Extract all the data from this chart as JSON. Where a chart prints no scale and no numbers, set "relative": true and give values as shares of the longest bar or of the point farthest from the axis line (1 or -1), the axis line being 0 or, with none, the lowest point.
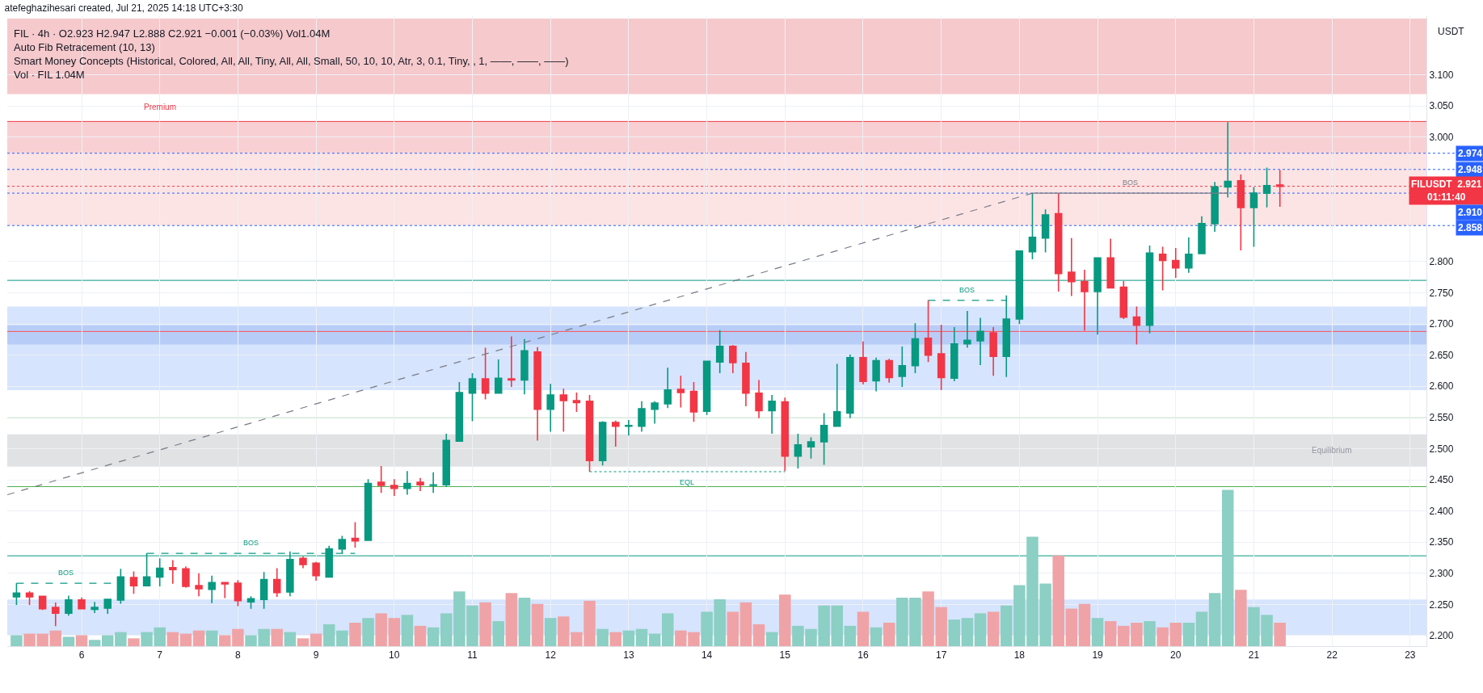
{
  "chart_data": [
    {
      "type": "candlestick",
      "title": "atefeghazihesari created, Jul 21, 2025 14:18 UTC+3:30",
      "subtitle": "FIL · 4h · O2.923 H2.947 L2.888 C2.921 −0.001 (−0.03%) Vol1.04M",
      "ylabel": "USDT",
      "x": [
        "2025-07-05T07:30",
        "2025-07-05T11:30",
        "2025-07-05T15:30",
        "2025-07-05T19:30",
        "2025-07-05T23:30",
        "2025-07-06T03:30",
        "2025-07-06T07:30",
        "2025-07-06T11:30",
        "2025-07-06T15:30",
        "2025-07-06T19:30",
        "2025-07-06T23:30",
        "2025-07-07T03:30",
        "2025-07-07T07:30",
        "2025-07-07T11:30",
        "2025-07-07T15:30",
        "2025-07-07T19:30",
        "2025-07-07T23:30",
        "2025-07-08T03:30",
        "2025-07-08T07:30",
        "2025-07-08T11:30",
        "2025-07-08T15:30",
        "2025-07-08T19:30",
        "2025-07-08T23:30",
        "2025-07-09T03:30",
        "2025-07-09T07:30",
        "2025-07-09T11:30",
        "2025-07-09T15:30",
        "2025-07-09T19:30",
        "2025-07-09T23:30",
        "2025-07-10T03:30",
        "2025-07-10T07:30",
        "2025-07-10T11:30",
        "2025-07-10T15:30",
        "2025-07-10T19:30",
        "2025-07-10T23:30",
        "2025-07-11T03:30",
        "2025-07-11T07:30",
        "2025-07-11T11:30",
        "2025-07-11T15:30",
        "2025-07-11T19:30",
        "2025-07-11T23:30",
        "2025-07-12T03:30",
        "2025-07-12T07:30",
        "2025-07-12T11:30",
        "2025-07-12T15:30",
        "2025-07-12T19:30",
        "2025-07-12T23:30",
        "2025-07-13T03:30",
        "2025-07-13T07:30",
        "2025-07-13T11:30",
        "2025-07-13T15:30",
        "2025-07-13T19:30",
        "2025-07-13T23:30",
        "2025-07-14T03:30",
        "2025-07-14T07:30",
        "2025-07-14T11:30",
        "2025-07-14T15:30",
        "2025-07-14T19:30",
        "2025-07-14T23:30",
        "2025-07-15T03:30",
        "2025-07-15T07:30",
        "2025-07-15T11:30",
        "2025-07-15T15:30",
        "2025-07-15T19:30",
        "2025-07-15T23:30",
        "2025-07-16T03:30",
        "2025-07-16T07:30",
        "2025-07-16T11:30",
        "2025-07-16T15:30",
        "2025-07-16T19:30",
        "2025-07-16T23:30",
        "2025-07-17T03:30",
        "2025-07-17T07:30",
        "2025-07-17T11:30",
        "2025-07-17T15:30",
        "2025-07-17T19:30",
        "2025-07-17T23:30",
        "2025-07-18T03:30",
        "2025-07-18T07:30",
        "2025-07-18T11:30",
        "2025-07-18T15:30",
        "2025-07-18T19:30",
        "2025-07-18T23:30",
        "2025-07-19T03:30",
        "2025-07-19T07:30",
        "2025-07-19T11:30",
        "2025-07-19T15:30",
        "2025-07-19T19:30",
        "2025-07-19T23:30",
        "2025-07-20T03:30",
        "2025-07-20T07:30",
        "2025-07-20T11:30",
        "2025-07-20T15:30",
        "2025-07-20T19:30",
        "2025-07-20T23:30",
        "2025-07-21T03:30",
        "2025-07-21T07:30",
        "2025-07-21T11:30"
      ],
      "ohlc": [
        [
          2.262,
          2.284,
          2.249,
          2.268
        ],
        [
          2.268,
          2.271,
          2.249,
          2.262
        ],
        [
          2.263,
          2.263,
          2.241,
          2.243
        ],
        [
          2.245,
          2.253,
          2.215,
          2.236
        ],
        [
          2.236,
          2.264,
          2.232,
          2.257
        ],
        [
          2.257,
          2.261,
          2.242,
          2.243
        ],
        [
          2.242,
          2.254,
          2.236,
          2.245
        ],
        [
          2.244,
          2.259,
          2.235,
          2.258
        ],
        [
          2.257,
          2.307,
          2.251,
          2.294
        ],
        [
          2.293,
          2.303,
          2.267,
          2.28
        ],
        [
          2.28,
          2.332,
          2.28,
          2.294
        ],
        [
          2.294,
          2.324,
          2.279,
          2.308
        ],
        [
          2.309,
          2.321,
          2.283,
          2.306
        ],
        [
          2.307,
          2.311,
          2.277,
          2.279
        ],
        [
          2.28,
          2.3,
          2.263,
          2.275
        ],
        [
          2.274,
          2.296,
          2.252,
          2.285
        ],
        [
          2.285,
          2.285,
          2.26,
          2.283
        ],
        [
          2.284,
          2.289,
          2.247,
          2.256
        ],
        [
          2.254,
          2.263,
          2.243,
          2.259
        ],
        [
          2.258,
          2.302,
          2.243,
          2.29
        ],
        [
          2.29,
          2.308,
          2.262,
          2.269
        ],
        [
          2.27,
          2.335,
          2.263,
          2.322
        ],
        [
          2.324,
          2.327,
          2.308,
          2.314
        ],
        [
          2.316,
          2.318,
          2.288,
          2.296
        ],
        [
          2.294,
          2.344,
          2.293,
          2.339
        ],
        [
          2.339,
          2.36,
          2.332,
          2.354
        ],
        [
          2.356,
          2.382,
          2.341,
          2.352
        ],
        [
          2.353,
          2.451,
          2.353,
          2.444
        ],
        [
          2.446,
          2.472,
          2.429,
          2.441
        ],
        [
          2.441,
          2.451,
          2.424,
          2.436
        ],
        [
          2.436,
          2.464,
          2.426,
          2.444
        ],
        [
          2.446,
          2.453,
          2.432,
          2.442
        ],
        [
          2.441,
          2.462,
          2.429,
          2.442
        ],
        [
          2.442,
          2.524,
          2.439,
          2.513
        ],
        [
          2.512,
          2.607,
          2.512,
          2.59
        ],
        [
          2.589,
          2.621,
          2.544,
          2.612
        ],
        [
          2.612,
          2.662,
          2.579,
          2.589
        ],
        [
          2.589,
          2.643,
          2.589,
          2.613
        ],
        [
          2.612,
          2.68,
          2.599,
          2.61
        ],
        [
          2.61,
          2.676,
          2.587,
          2.657
        ],
        [
          2.655,
          2.663,
          2.513,
          2.563
        ],
        [
          2.563,
          2.604,
          2.527,
          2.586
        ],
        [
          2.586,
          2.596,
          2.527,
          2.577
        ],
        [
          2.577,
          2.59,
          2.559,
          2.574
        ],
        [
          2.576,
          2.586,
          2.463,
          2.481
        ],
        [
          2.481,
          2.544,
          2.473,
          2.542
        ],
        [
          2.542,
          2.545,
          2.503,
          2.536
        ],
        [
          2.536,
          2.546,
          2.521,
          2.537
        ],
        [
          2.536,
          2.576,
          2.527,
          2.564
        ],
        [
          2.563,
          2.576,
          2.54,
          2.573
        ],
        [
          2.572,
          2.63,
          2.565,
          2.594
        ],
        [
          2.595,
          2.617,
          2.566,
          2.59
        ],
        [
          2.592,
          2.607,
          2.543,
          2.559
        ],
        [
          2.56,
          2.64,
          2.554,
          2.64
        ],
        [
          2.639,
          2.69,
          2.621,
          2.664
        ],
        [
          2.664,
          2.666,
          2.621,
          2.638
        ],
        [
          2.637,
          2.655,
          2.568,
          2.589
        ],
        [
          2.589,
          2.61,
          2.549,
          2.561
        ],
        [
          2.561,
          2.586,
          2.524,
          2.576
        ],
        [
          2.575,
          2.582,
          2.464,
          2.488
        ],
        [
          2.488,
          2.524,
          2.468,
          2.506
        ],
        [
          2.503,
          2.518,
          2.484,
          2.511
        ],
        [
          2.511,
          2.557,
          2.474,
          2.537
        ],
        [
          2.536,
          2.636,
          2.536,
          2.559
        ],
        [
          2.557,
          2.651,
          2.549,
          2.646
        ],
        [
          2.646,
          2.672,
          2.603,
          2.608
        ],
        [
          2.609,
          2.646,
          2.592,
          2.641
        ],
        [
          2.641,
          2.644,
          2.606,
          2.614
        ],
        [
          2.616,
          2.664,
          2.599,
          2.633
        ],
        [
          2.633,
          2.701,
          2.621,
          2.676
        ],
        [
          2.677,
          2.738,
          2.639,
          2.65
        ],
        [
          2.652,
          2.699,
          2.594,
          2.614
        ],
        [
          2.613,
          2.695,
          2.608,
          2.668
        ],
        [
          2.668,
          2.721,
          2.662,
          2.674
        ],
        [
          2.673,
          2.71,
          2.634,
          2.688
        ],
        [
          2.686,
          2.695,
          2.617,
          2.648
        ],
        [
          2.648,
          2.746,
          2.615,
          2.708
        ],
        [
          2.708,
          2.817,
          2.7,
          2.817
        ],
        [
          2.816,
          2.91,
          2.804,
          2.839
        ],
        [
          2.838,
          2.884,
          2.815,
          2.875
        ],
        [
          2.877,
          2.91,
          2.752,
          2.781
        ],
        [
          2.783,
          2.838,
          2.745,
          2.768
        ],
        [
          2.768,
          2.787,
          2.689,
          2.752
        ],
        [
          2.752,
          2.807,
          2.683,
          2.806
        ],
        [
          2.806,
          2.837,
          2.758,
          2.758
        ],
        [
          2.759,
          2.769,
          2.708,
          2.711
        ],
        [
          2.711,
          2.728,
          2.667,
          2.698
        ],
        [
          2.698,
          2.826,
          2.685,
          2.814
        ],
        [
          2.812,
          2.824,
          2.754,
          2.802
        ],
        [
          2.802,
          2.822,
          2.774,
          2.79
        ],
        [
          2.79,
          2.839,
          2.782,
          2.812
        ],
        [
          2.813,
          2.873,
          2.813,
          2.861
        ],
        [
          2.861,
          2.928,
          2.848,
          2.92
        ],
        [
          2.92,
          3.024,
          2.903,
          2.929
        ],
        [
          2.93,
          2.94,
          2.818,
          2.887
        ],
        [
          2.887,
          2.92,
          2.824,
          2.91
        ],
        [
          2.91,
          2.951,
          2.887,
          2.922
        ],
        [
          2.923,
          2.947,
          2.888,
          2.921
        ]
      ],
      "colors": [
        "#089981",
        "#f23645",
        "#f23645",
        "#f23645",
        "#089981",
        "#f23645",
        "#089981",
        "#089981",
        "#089981",
        "#f23645",
        "#089981",
        "#089981",
        "#f23645",
        "#f23645",
        "#f23645",
        "#089981",
        "#f23645",
        "#f23645",
        "#089981",
        "#089981",
        "#f23645",
        "#089981",
        "#f23645",
        "#f23645",
        "#089981",
        "#089981",
        "#f23645",
        "#089981",
        "#f23645",
        "#f23645",
        "#089981",
        "#f23645",
        "#089981",
        "#089981",
        "#089981",
        "#089981",
        "#f23645",
        "#089981",
        "#f23645",
        "#089981",
        "#f23645",
        "#089981",
        "#f23645",
        "#f23645",
        "#f23645",
        "#089981",
        "#f23645",
        "#089981",
        "#089981",
        "#089981",
        "#089981",
        "#f23645",
        "#f23645",
        "#089981",
        "#089981",
        "#f23645",
        "#f23645",
        "#f23645",
        "#089981",
        "#f23645",
        "#089981",
        "#089981",
        "#089981",
        "#089981",
        "#089981",
        "#f23645",
        "#089981",
        "#f23645",
        "#089981",
        "#089981",
        "#f23645",
        "#f23645",
        "#089981",
        "#089981",
        "#089981",
        "#f23645",
        "#089981",
        "#089981",
        "#089981",
        "#089981",
        "#f23645",
        "#f23645",
        "#f23645",
        "#089981",
        "#f23645",
        "#f23645",
        "#f23645",
        "#089981",
        "#f23645",
        "#f23645",
        "#089981",
        "#089981",
        "#089981",
        "#089981",
        "#f23645",
        "#089981",
        "#089981",
        "#f23645"
      ],
      "series": [
        {
          "type": "line",
          "x": [
            "2025-07-05T04:40",
            "2025-07-18T07:30"
          ],
          "values": [
            2.426,
            2.91
          ],
          "color": "#787b86",
          "line_style": "dashed"
        },
        {
          "type": "line",
          "name": "BOS",
          "x": [
            "2025-07-05T07:30",
            "2025-07-06T14:00"
          ],
          "values": [
            2.284,
            2.284
          ],
          "color": "#089981",
          "line_style": "dashed"
        },
        {
          "type": "line",
          "name": "BOS",
          "x": [
            "2025-07-06T23:30",
            "2025-07-09T15:30"
          ],
          "values": [
            2.332,
            2.332
          ],
          "color": "#089981",
          "line_style": "dashed"
        },
        {
          "type": "line",
          "name": "BOS",
          "x": [
            "2025-07-16T23:30",
            "2025-07-17T23:30"
          ],
          "values": [
            2.738,
            2.738
          ],
          "color": "#089981",
          "line_style": "dashed"
        },
        {
          "type": "line",
          "name": "BOS",
          "x": [
            "2025-07-18T07:30",
            "2025-07-20T19:30"
          ],
          "values": [
            2.91,
            2.91
          ],
          "color": "#787b86",
          "line_style": "solid"
        },
        {
          "type": "line",
          "name": "EQL",
          "x": [
            "2025-07-12T15:30",
            "2025-07-15T03:30"
          ],
          "values": [
            2.463,
            2.463
          ],
          "color": "#089981",
          "line_style": "dotted"
        }
      ],
      "annotations": [
        "Auto Fib Retracement (10, 13)",
        "Smart Money Concepts (Historical, Colored, All, All, Tiny, All, All, Small, 50, 10, 10, Atr, 3, 0.1, Tiny, , 1, ——, ——, ——)",
        {
          "text": "Premium",
          "x": "2025-07-07T03:30",
          "y": 3.025
        }
      ],
      "ref_lines": [
        {
          "axis": "y",
          "value": 2.328,
          "color": "#089981"
        },
        {
          "axis": "y",
          "value": 2.439,
          "color": "#4caf50"
        },
        {
          "axis": "y",
          "value": 2.55,
          "color": "#81c784"
        },
        {
          "axis": "y",
          "value": 2.688,
          "color": "#ff5252"
        },
        {
          "axis": "y",
          "value": 2.77,
          "color": "#089981"
        },
        {
          "axis": "y",
          "value": 3.025,
          "color": "#f23645"
        },
        {
          "axis": "y",
          "value": 2.974,
          "label": "2.974",
          "color": "#2962ff",
          "line_style": "dotted"
        },
        {
          "axis": "y",
          "value": 2.948,
          "label": "2.948",
          "color": "#2962ff",
          "line_style": "dotted"
        },
        {
          "axis": "y",
          "value": 2.921,
          "label": "FILUSDT  2.921\n01:11:40",
          "color": "#f23645",
          "line_style": "dotted"
        },
        {
          "axis": "y",
          "value": 2.91,
          "label": "2.910",
          "color": "#2962ff",
          "line_style": "dotted"
        },
        {
          "axis": "y",
          "value": 2.858,
          "label": "2.858",
          "color": "#2962ff",
          "line_style": "dotted"
        }
      ],
      "bands": [
        {
          "axis": "y",
          "from": 3.069,
          "to": 3.19,
          "color": "#f6c9cc"
        },
        {
          "axis": "y",
          "from": 2.974,
          "to": 3.025,
          "color": "#f8d0d3"
        },
        {
          "axis": "y",
          "from": 2.858,
          "to": 2.974,
          "color": "#fce4e5"
        },
        {
          "axis": "y",
          "from": 2.471,
          "to": 2.523,
          "color": "#e1e2e4",
          "label": "Equilibrium"
        },
        {
          "axis": "y",
          "from": 2.594,
          "to": 2.728,
          "color": "#d6e4fd"
        },
        {
          "axis": "y",
          "from": 2.667,
          "to": 2.698,
          "color": "#b7cdf8"
        },
        {
          "axis": "y",
          "from": 2.2,
          "to": 2.258,
          "color": "#d6e4fd"
        }
      ],
      "xlim": [
        "2025-07-05T04:40",
        "2025-07-23T08:30"
      ],
      "xticks": [
        {
          "value": "2025-07-06T03:30",
          "label": "6"
        },
        {
          "value": "2025-07-07T03:30",
          "label": "7"
        },
        {
          "value": "2025-07-08T03:30",
          "label": "8"
        },
        {
          "value": "2025-07-09T03:30",
          "label": "9"
        },
        {
          "value": "2025-07-10T03:30",
          "label": "10"
        },
        {
          "value": "2025-07-11T03:30",
          "label": "11"
        },
        {
          "value": "2025-07-12T03:30",
          "label": "12"
        },
        {
          "value": "2025-07-13T03:30",
          "label": "13"
        },
        {
          "value": "2025-07-14T03:30",
          "label": "14"
        },
        {
          "value": "2025-07-15T03:30",
          "label": "15"
        },
        {
          "value": "2025-07-16T03:30",
          "label": "16"
        },
        {
          "value": "2025-07-17T03:30",
          "label": "17"
        },
        {
          "value": "2025-07-18T03:30",
          "label": "18"
        },
        {
          "value": "2025-07-19T03:30",
          "label": "19"
        },
        {
          "value": "2025-07-20T03:30",
          "label": "20"
        },
        {
          "value": "2025-07-21T03:30",
          "label": "21"
        },
        {
          "value": "2025-07-22T03:30",
          "label": "22"
        },
        {
          "value": "2025-07-23T03:30",
          "label": "23"
        }
      ],
      "ylim": [
        2.183,
        3.194
      ],
      "yticks": [
        {
          "value": 2.2,
          "label": "2.200"
        },
        {
          "value": 2.25,
          "label": "2.250"
        },
        {
          "value": 2.3,
          "label": "2.300"
        },
        {
          "value": 2.35,
          "label": "2.350"
        },
        {
          "value": 2.4,
          "label": "2.400"
        },
        {
          "value": 2.45,
          "label": "2.450"
        },
        {
          "value": 2.5,
          "label": "2.500"
        },
        {
          "value": 2.55,
          "label": "2.550"
        },
        {
          "value": 2.6,
          "label": "2.600"
        },
        {
          "value": 2.65,
          "label": "2.650"
        },
        {
          "value": 2.7,
          "label": "2.700"
        },
        {
          "value": 2.75,
          "label": "2.750"
        },
        {
          "value": 2.8,
          "label": "2.800"
        },
        {
          "value": 3.0,
          "label": "3.000"
        },
        {
          "value": 3.05,
          "label": "3.050"
        },
        {
          "value": 3.1,
          "label": "3.100"
        }
      ],
      "grid": true
    },
    {
      "type": "bar",
      "title": "Vol · FIL 1.04M",
      "relative": true,
      "categories": [
        null,
        null,
        null,
        null,
        null,
        null,
        null,
        null,
        null,
        null,
        null,
        null,
        null,
        null,
        null,
        null,
        null,
        null,
        null,
        null,
        null,
        null,
        null,
        null,
        null,
        null,
        null,
        null,
        null,
        null,
        null,
        null,
        null,
        null,
        null,
        null,
        null,
        null,
        null,
        null,
        null,
        null,
        null,
        null,
        null,
        null,
        null,
        null,
        null,
        null,
        null,
        null,
        null,
        null,
        null,
        null,
        null,
        null,
        null,
        null,
        null,
        null,
        null,
        null,
        null,
        null,
        null,
        null,
        null,
        null,
        null,
        null,
        null,
        null,
        null,
        null,
        null,
        null,
        null,
        null,
        null,
        null,
        null,
        null,
        null,
        null,
        null,
        null,
        null,
        null,
        null,
        null,
        null,
        null,
        null,
        null,
        null,
        null
      ],
      "values": [
        0.07,
        0.08,
        0.08,
        0.1,
        0.06,
        0.07,
        0.04,
        0.07,
        0.09,
        0.05,
        0.09,
        0.12,
        0.09,
        0.08,
        0.1,
        0.1,
        0.07,
        0.11,
        0.07,
        0.11,
        0.11,
        0.09,
        0.05,
        0.08,
        0.14,
        0.1,
        0.15,
        0.18,
        0.21,
        0.18,
        0.2,
        0.13,
        0.12,
        0.21,
        0.35,
        0.26,
        0.28,
        0.16,
        0.34,
        0.31,
        0.27,
        0.18,
        0.19,
        0.09,
        0.29,
        0.11,
        0.09,
        0.1,
        0.11,
        0.08,
        0.21,
        0.1,
        0.09,
        0.22,
        0.3,
        0.22,
        0.28,
        0.14,
        0.09,
        0.33,
        0.13,
        0.11,
        0.26,
        0.26,
        0.13,
        0.22,
        0.12,
        0.15,
        0.31,
        0.31,
        0.35,
        0.25,
        0.17,
        0.18,
        0.21,
        0.22,
        0.26,
        0.39,
        0.7,
        0.4,
        0.58,
        0.24,
        0.27,
        0.18,
        0.16,
        0.13,
        0.15,
        0.16,
        0.12,
        0.15,
        0.15,
        0.22,
        0.34,
        1,
        0.36,
        0.25,
        0.2,
        0.15
      ],
      "colors": [
        "#8ccfc4",
        "#f0a3a6",
        "#f0a3a6",
        "#f0a3a6",
        "#8ccfc4",
        "#f0a3a6",
        "#8ccfc4",
        "#8ccfc4",
        "#8ccfc4",
        "#f0a3a6",
        "#8ccfc4",
        "#8ccfc4",
        "#f0a3a6",
        "#f0a3a6",
        "#f0a3a6",
        "#8ccfc4",
        "#f0a3a6",
        "#f0a3a6",
        "#8ccfc4",
        "#8ccfc4",
        "#f0a3a6",
        "#8ccfc4",
        "#f0a3a6",
        "#f0a3a6",
        "#8ccfc4",
        "#8ccfc4",
        "#f0a3a6",
        "#8ccfc4",
        "#f0a3a6",
        "#f0a3a6",
        "#8ccfc4",
        "#f0a3a6",
        "#8ccfc4",
        "#8ccfc4",
        "#8ccfc4",
        "#8ccfc4",
        "#f0a3a6",
        "#8ccfc4",
        "#f0a3a6",
        "#8ccfc4",
        "#f0a3a6",
        "#8ccfc4",
        "#f0a3a6",
        "#f0a3a6",
        "#f0a3a6",
        "#8ccfc4",
        "#f0a3a6",
        "#8ccfc4",
        "#8ccfc4",
        "#8ccfc4",
        "#8ccfc4",
        "#f0a3a6",
        "#f0a3a6",
        "#8ccfc4",
        "#8ccfc4",
        "#f0a3a6",
        "#f0a3a6",
        "#f0a3a6",
        "#8ccfc4",
        "#f0a3a6",
        "#8ccfc4",
        "#8ccfc4",
        "#8ccfc4",
        "#8ccfc4",
        "#8ccfc4",
        "#f0a3a6",
        "#8ccfc4",
        "#f0a3a6",
        "#8ccfc4",
        "#8ccfc4",
        "#f0a3a6",
        "#f0a3a6",
        "#8ccfc4",
        "#8ccfc4",
        "#8ccfc4",
        "#f0a3a6",
        "#8ccfc4",
        "#8ccfc4",
        "#8ccfc4",
        "#8ccfc4",
        "#f0a3a6",
        "#f0a3a6",
        "#f0a3a6",
        "#8ccfc4",
        "#f0a3a6",
        "#f0a3a6",
        "#f0a3a6",
        "#8ccfc4",
        "#f0a3a6",
        "#f0a3a6",
        "#8ccfc4",
        "#8ccfc4",
        "#8ccfc4",
        "#8ccfc4",
        "#f0a3a6",
        "#8ccfc4",
        "#8ccfc4",
        "#f0a3a6"
      ]
    }
  ]
}
